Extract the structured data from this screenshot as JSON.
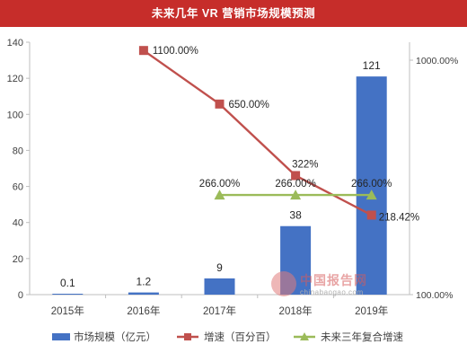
{
  "title": "未来几年 VR 营销市场规模预测",
  "watermark": {
    "name": "中国报告网",
    "url": "chinabaogao.com"
  },
  "colors": {
    "title_bg": "#c62d2a",
    "bar": "#4472c4",
    "growth": "#c0504d",
    "cagr": "#9bbb59",
    "axis": "#bfbfbf",
    "text": "#404040"
  },
  "chart_data": {
    "type": "bar",
    "categories": [
      "2015年",
      "2016年",
      "2017年",
      "2018年",
      "2019年"
    ],
    "left_axis": {
      "min": 0,
      "max": 140,
      "ticks": [
        "0",
        "20",
        "40",
        "60",
        "80",
        "100",
        "120",
        "140"
      ]
    },
    "right_axis": {
      "scale": "log",
      "min": 100,
      "max": 1000,
      "ticks": [
        "100.00%",
        "1000.00%"
      ]
    },
    "series": [
      {
        "name": "市场规模（亿元）",
        "kind": "bar",
        "axis": "left",
        "values": [
          0.1,
          1.2,
          9,
          38,
          121
        ],
        "labels": [
          "0.1",
          "1.2",
          "9",
          "38",
          "121"
        ]
      },
      {
        "name": "增速（百分百）",
        "kind": "line",
        "axis": "right",
        "x": [
          "2016年",
          "2017年",
          "2018年",
          "2019年"
        ],
        "values": [
          1100,
          650,
          322,
          218.42
        ],
        "labels": [
          "1100.00%",
          "650.00%",
          "322%",
          "218.42%"
        ]
      },
      {
        "name": "未来三年复合增速",
        "kind": "line",
        "axis": "right",
        "x": [
          "2017年",
          "2018年",
          "2019年"
        ],
        "values": [
          266,
          266,
          266
        ],
        "labels": [
          "266.00%",
          "266.00%",
          "266.00%"
        ]
      }
    ],
    "legend_position": "bottom",
    "grid": false
  }
}
